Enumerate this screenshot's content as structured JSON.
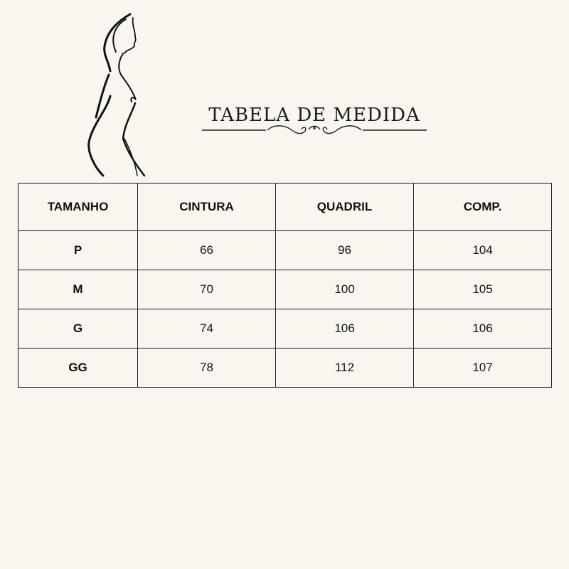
{
  "title": "TABELA DE MEDIDA",
  "decor": {
    "figure-icon": "woman-silhouette",
    "ornament-icon": "flourish-divider"
  },
  "table": {
    "headers": [
      "TAMANHO",
      "CINTURA",
      "QUADRIL",
      "COMP."
    ],
    "rows": [
      [
        "P",
        "66",
        "96",
        "104"
      ],
      [
        "M",
        "70",
        "100",
        "105"
      ],
      [
        "G",
        "74",
        "106",
        "106"
      ],
      [
        "GG",
        "78",
        "112",
        "107"
      ]
    ]
  }
}
